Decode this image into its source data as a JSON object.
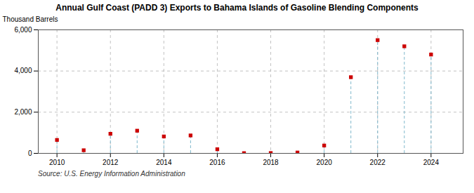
{
  "chart_data": {
    "type": "stem",
    "title": "Annual Gulf Coast (PADD 3) Exports to Bahama Islands of Gasoline Blending Components",
    "ylabel": "Thousand Barrels",
    "source": "Source: U.S. Energy Information Administration",
    "x": [
      2010,
      2011,
      2012,
      2013,
      2014,
      2015,
      2016,
      2017,
      2018,
      2019,
      2020,
      2021,
      2022,
      2023,
      2024
    ],
    "values": [
      650,
      150,
      950,
      1100,
      820,
      870,
      200,
      10,
      15,
      40,
      380,
      3700,
      5500,
      5200,
      4800
    ],
    "color": "#cc0000",
    "marker": "square",
    "line_style": "dashed",
    "grid": true,
    "xlim": [
      2009.3,
      2025.2
    ],
    "xticks": [
      2010,
      2012,
      2014,
      2016,
      2018,
      2020,
      2022,
      2024
    ],
    "ylim": [
      0,
      6000
    ],
    "yticks": [
      0,
      {
        "value": 2000,
        "label": "2,000"
      },
      {
        "value": 4000,
        "label": "4,000"
      },
      {
        "value": 6000,
        "label": "6,000"
      }
    ]
  }
}
